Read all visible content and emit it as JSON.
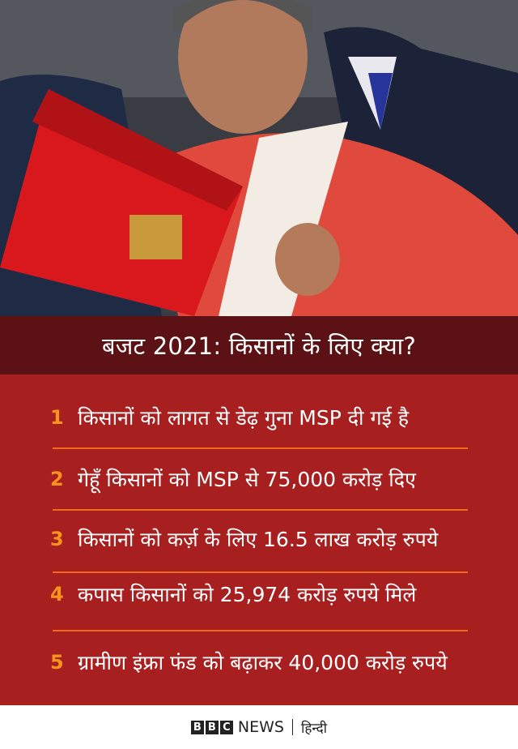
{
  "header": {
    "title": "बजट 2021: किसानों के लिए क्या?"
  },
  "items": [
    {
      "number": "1",
      "text": "किसानों को लागत से डेढ़ गुना MSP दी गई है"
    },
    {
      "number": "2",
      "text": "गेहूँ किसानों को MSP से 75,000 करोड़ दिए"
    },
    {
      "number": "3",
      "text": "किसानों को कर्ज़ के लिए 16.5 लाख करोड़ रुपये"
    },
    {
      "number": "4",
      "text": "कपास किसानों को 25,974 करोड़ रुपये मिले"
    },
    {
      "number": "5",
      "text": "ग्रामीण इंफ्रा फंड को बढ़ाकर 40,000 करोड़ रुपये"
    }
  ],
  "footer": {
    "logo_letters": [
      "B",
      "B",
      "C"
    ],
    "news": "NEWS",
    "language": "हिन्दी"
  },
  "colors": {
    "header_bg": "#5c1214",
    "body_bg": "#a81f20",
    "number": "#f7941d",
    "separator": "#f26a1b"
  }
}
